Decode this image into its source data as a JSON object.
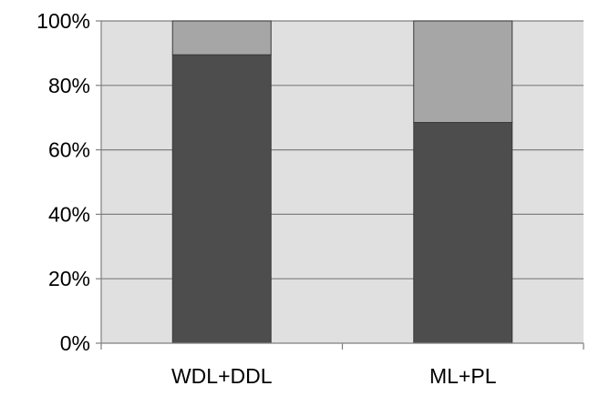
{
  "chart_data": {
    "type": "bar",
    "stacked": true,
    "percent_scale": true,
    "categories": [
      "WDL+DDL",
      "ML+PL"
    ],
    "series": [
      {
        "values": [
          89.5,
          68.5
        ],
        "color": "#4d4d4d"
      },
      {
        "values": [
          10.5,
          31.5
        ],
        "color": "#a6a6a6"
      }
    ],
    "ylim": [
      0,
      100
    ],
    "yticks": [
      0,
      20,
      40,
      60,
      80,
      100
    ],
    "ytick_labels": [
      "0%",
      "20%",
      "40%",
      "60%",
      "80%",
      "100%"
    ],
    "title": "",
    "xlabel": "",
    "ylabel": "",
    "grid": "horizontal",
    "legend": "none",
    "plot_background": "#e0e0e0",
    "gridline_color": "#7f7f7f"
  }
}
